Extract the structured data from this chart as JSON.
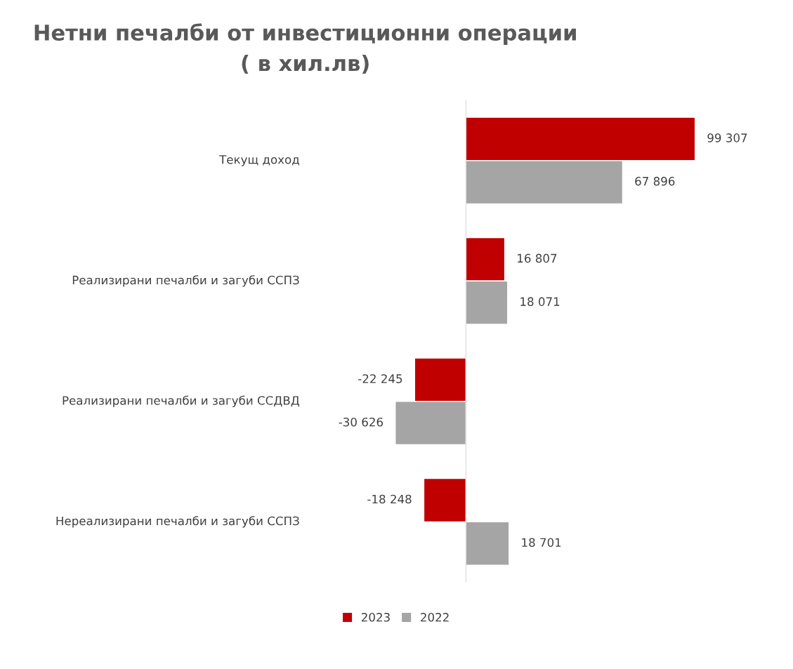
{
  "chart_data": {
    "type": "bar",
    "orientation": "horizontal",
    "title": "Нетни печалби от инвестиционни операции\n( в хил.лв)",
    "categories": [
      "Текущ доход",
      "Реализирани печалби и загуби ССПЗ",
      "Реализирани печалби и загуби ССДВД",
      "Нереализирани печалби и загуби ССПЗ"
    ],
    "series": [
      {
        "name": "2023",
        "color": "#c00000",
        "values": [
          99307,
          16807,
          -22245,
          -18248
        ],
        "value_labels": [
          "99 307",
          "16 807",
          "-22 245",
          "-18 248"
        ]
      },
      {
        "name": "2022",
        "color": "#a5a5a5",
        "values": [
          67896,
          18071,
          -30626,
          18701
        ],
        "value_labels": [
          "67 896",
          "18 071",
          "-30 626",
          "18 701"
        ]
      }
    ],
    "tick_labels": "y",
    "legend": "bottom"
  }
}
